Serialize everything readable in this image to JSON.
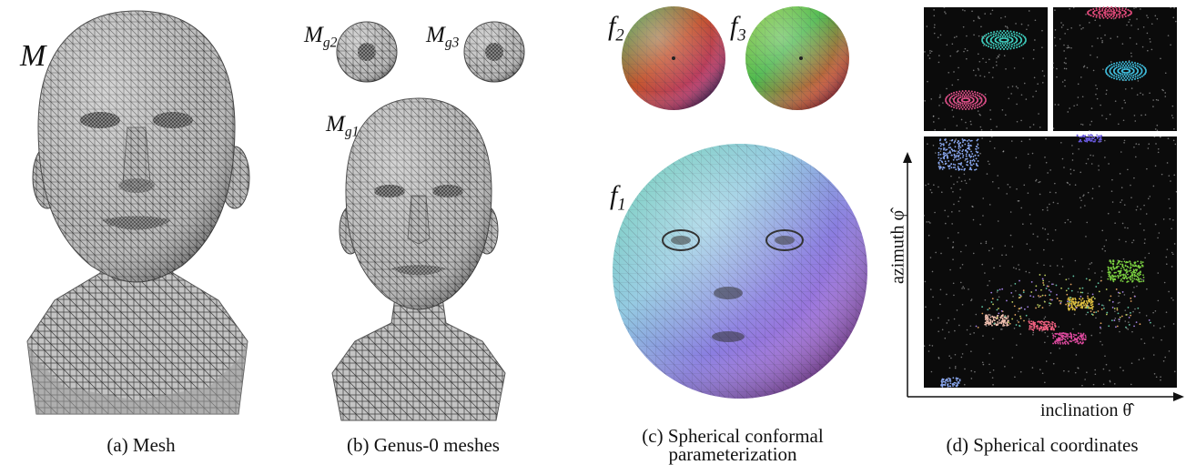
{
  "panels": {
    "a": {
      "label": "M",
      "caption": "(a) Mesh"
    },
    "b": {
      "labels": [
        {
          "base": "M",
          "sub": "g2"
        },
        {
          "base": "M",
          "sub": "g3"
        },
        {
          "base": "M",
          "sub": "g1"
        }
      ],
      "caption": "(b) Genus-0 meshes"
    },
    "c": {
      "labels": [
        {
          "base": "f",
          "sub": "2"
        },
        {
          "base": "f",
          "sub": "3"
        },
        {
          "base": "f",
          "sub": "1"
        }
      ],
      "caption_line1": "(c) Spherical conformal",
      "caption_line2": "parameterization"
    },
    "d": {
      "y_axis_label": "azimuth φ̂",
      "x_axis_label": "inclination θ̂",
      "caption": "(d) Spherical coordinates"
    }
  },
  "colors": {
    "mesh_gray": "#b9b9b9",
    "mesh_line": "#3a3a3a",
    "plot_bg": "#0b0b0b"
  }
}
